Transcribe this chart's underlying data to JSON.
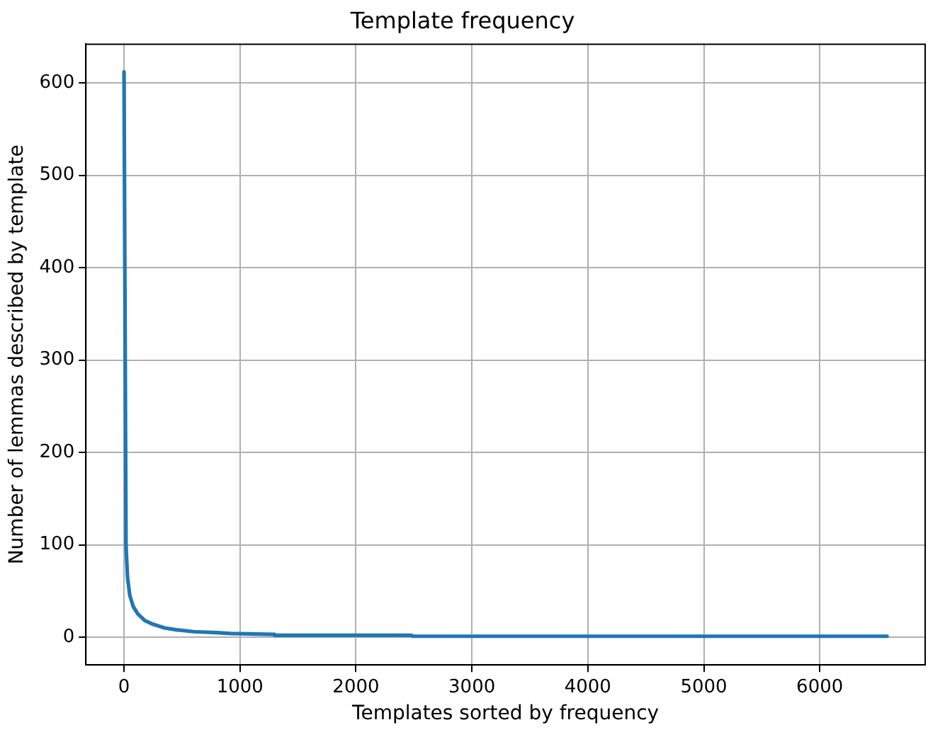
{
  "chart_data": {
    "type": "line",
    "title": "Template frequency",
    "xlabel": "Templates sorted by frequency",
    "ylabel": "Number of lemmas described by template",
    "xlim": [
      -329,
      6909
    ],
    "xticks": [
      0,
      1000,
      2000,
      3000,
      4000,
      5000,
      6000
    ],
    "ylim": [
      -30,
      642
    ],
    "yticks": [
      0,
      100,
      200,
      300,
      400,
      500,
      600
    ],
    "grid": true,
    "legend": false,
    "marker": "none",
    "line_style": "solid",
    "series": [
      {
        "color": "#1f77b4",
        "x": [
          0,
          17,
          30,
          50,
          80,
          120,
          180,
          250,
          350,
          450,
          600,
          800,
          920,
          1290,
          1300,
          2480,
          2490,
          6580
        ],
        "values": [
          612,
          100,
          65,
          45,
          33,
          25,
          18,
          14,
          10,
          8,
          6,
          5,
          4,
          3,
          2,
          2,
          1,
          1
        ]
      }
    ]
  }
}
